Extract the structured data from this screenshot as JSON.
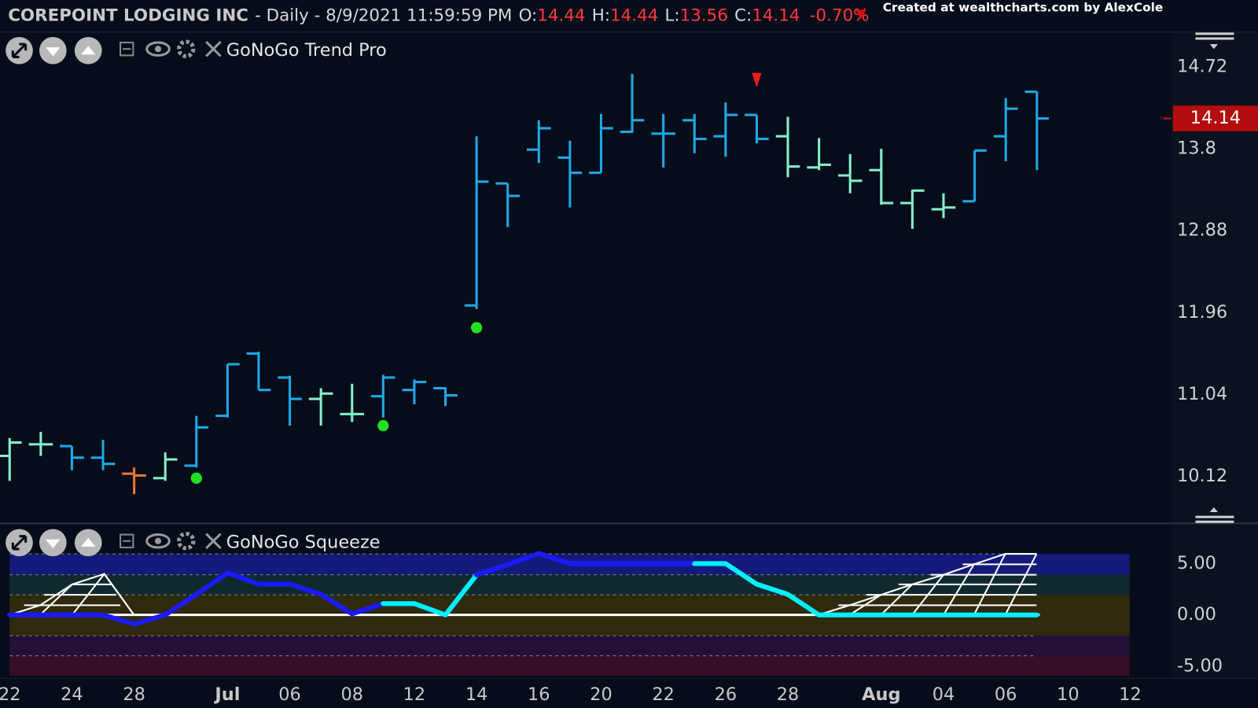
{
  "chart_data": [
    {
      "type": "ohlc",
      "title": "COREPOINT LODGING INC",
      "subtitle": "- Daily - 8/9/2021 11:59:59 PM",
      "open_label": "O:",
      "high_label": "H:",
      "low_label": "L:",
      "close_label": "C:",
      "change": "-0.70%",
      "credit": "Created at wealthcharts.com by AlexCole",
      "panel_title": "GoNoGo Trend Pro",
      "categories": [
        "22",
        null,
        "24",
        null,
        "28",
        null,
        null,
        "Jul",
        null,
        "06",
        null,
        "08",
        null,
        "12",
        null,
        "14",
        null,
        "16",
        null,
        "20",
        null,
        "22",
        null,
        "26",
        null,
        "28",
        null,
        null,
        "Aug",
        null,
        "04",
        null,
        "06",
        null,
        "10",
        null,
        "12",
        null
      ],
      "open": [
        10.35,
        10.48,
        10.46,
        10.33,
        10.15,
        10.1,
        10.24,
        10.8,
        11.5,
        11.23,
        10.99,
        10.82,
        11.02,
        11.09,
        11.11,
        12.04,
        13.41,
        13.79,
        13.7,
        13.53,
        13.99,
        13.97,
        14.12,
        13.94,
        14.18,
        13.94,
        13.59,
        13.5,
        13.56,
        13.19,
        13.12,
        13.21,
        13.94,
        14.44,
        null,
        null,
        null,
        null
      ],
      "high": [
        10.55,
        10.62,
        10.46,
        10.53,
        10.22,
        10.39,
        10.8,
        11.38,
        11.52,
        11.25,
        11.11,
        11.16,
        11.26,
        11.21,
        11.12,
        13.94,
        13.41,
        14.12,
        13.89,
        14.19,
        14.64,
        14.19,
        14.19,
        14.32,
        14.18,
        14.16,
        13.92,
        13.74,
        13.8,
        13.34,
        13.3,
        13.78,
        14.37,
        14.44,
        null,
        null,
        null,
        null
      ],
      "low": [
        10.07,
        10.35,
        10.19,
        10.19,
        9.92,
        10.07,
        10.22,
        10.78,
        11.09,
        10.69,
        10.69,
        10.73,
        10.78,
        10.93,
        10.91,
        12.0,
        12.92,
        13.64,
        13.14,
        13.53,
        13.98,
        13.59,
        13.75,
        13.71,
        13.86,
        13.48,
        13.56,
        13.3,
        13.17,
        12.9,
        13.02,
        13.21,
        13.66,
        13.56,
        null,
        null,
        null,
        null
      ],
      "close": [
        10.5,
        10.48,
        10.33,
        10.26,
        10.13,
        10.31,
        10.67,
        11.38,
        11.09,
        10.99,
        11.05,
        10.82,
        11.23,
        11.18,
        11.03,
        13.43,
        13.27,
        14.03,
        13.53,
        14.03,
        14.12,
        13.97,
        13.91,
        14.18,
        13.91,
        13.6,
        13.62,
        13.44,
        13.19,
        13.33,
        13.14,
        13.78,
        14.25,
        14.14,
        null,
        null,
        null,
        null
      ],
      "colors": [
        "#86f0c8",
        "#86f0c8",
        "#1ea8e6",
        "#1ea8e6",
        "#e8782c",
        "#86f0c8",
        "#1ea8e6",
        "#1ea8e6",
        "#1ea8e6",
        "#1ea8e6",
        "#86f0c8",
        "#86f0c8",
        "#1ea8e6",
        "#1ea8e6",
        "#1ea8e6",
        "#1ea8e6",
        "#1ea8e6",
        "#1ea8e6",
        "#1ea8e6",
        "#1ea8e6",
        "#1ea8e6",
        "#1ea8e6",
        "#1ea8e6",
        "#1ea8e6",
        "#1ea8e6",
        "#86f0c8",
        "#86f0c8",
        "#86f0c8",
        "#86f0c8",
        "#86f0c8",
        "#86f0c8",
        "#1ea8e6",
        "#1ea8e6",
        "#1ea8e6",
        null,
        null,
        null,
        null
      ],
      "go_dots": [
        null,
        null,
        null,
        null,
        null,
        null,
        10.1,
        null,
        null,
        null,
        null,
        null,
        10.69,
        null,
        null,
        11.79,
        null,
        null,
        null,
        null,
        null,
        null,
        null,
        null,
        null,
        null,
        null,
        null,
        null,
        null,
        null,
        null,
        null,
        null,
        null,
        null,
        null,
        null
      ],
      "go_dot_color": "#22e022",
      "nogo_triangles": [
        null,
        null,
        null,
        null,
        null,
        null,
        null,
        null,
        null,
        null,
        null,
        null,
        null,
        null,
        null,
        null,
        null,
        null,
        null,
        null,
        null,
        null,
        null,
        null,
        14.57,
        null,
        null,
        null,
        null,
        null,
        null,
        null,
        null,
        null,
        null,
        null,
        null,
        null
      ],
      "nogo_color": "#ff1a1a",
      "ylim": [
        9.61,
        15.11
      ],
      "yticks": [
        10.12,
        11.04,
        11.96,
        12.88,
        13.8,
        14.72
      ]
    },
    {
      "type": "line",
      "title": "GoNoGo Squeeze",
      "values": [
        0,
        0,
        0,
        0,
        -0.9,
        0,
        2.0,
        4.1,
        3.0,
        3.0,
        2.0,
        0.1,
        1.1,
        1.1,
        0,
        3.9,
        4.9,
        6.0,
        5.0,
        5.0,
        5.0,
        5.0,
        5.0,
        5.0,
        3.0,
        2.0,
        0,
        0,
        0,
        0,
        0,
        0,
        0,
        0,
        null,
        null,
        null,
        null
      ],
      "colors": [
        "#1a1aff",
        "#1a1aff",
        "#1a1aff",
        "#1a1aff",
        "#1a1aff",
        "#1a1aff",
        "#1a1aff",
        "#1a1aff",
        "#1a1aff",
        "#1a1aff",
        "#1a1aff",
        "#1a1aff",
        "#00f0ff",
        "#00f0ff",
        "#00f0ff",
        "#1a1aff",
        "#1a1aff",
        "#1a1aff",
        "#1a1aff",
        "#1a1aff",
        "#1a1aff",
        "#1a1aff",
        "#00f0ff",
        "#00f0ff",
        "#00f0ff",
        "#00f0ff",
        "#00f0ff",
        "#00f0ff",
        "#00f0ff",
        "#00f0ff",
        "#00f0ff",
        "#00f0ff",
        "#00f0ff",
        "#00f0ff",
        null,
        null,
        null,
        null
      ],
      "ylim": [
        -6.5,
        6.5
      ],
      "yticks": [
        {
          "value": 5,
          "label": "5.00"
        },
        {
          "value": 0,
          "label": "0.00"
        },
        {
          "value": -5,
          "label": "-5.00"
        }
      ]
    }
  ]
}
